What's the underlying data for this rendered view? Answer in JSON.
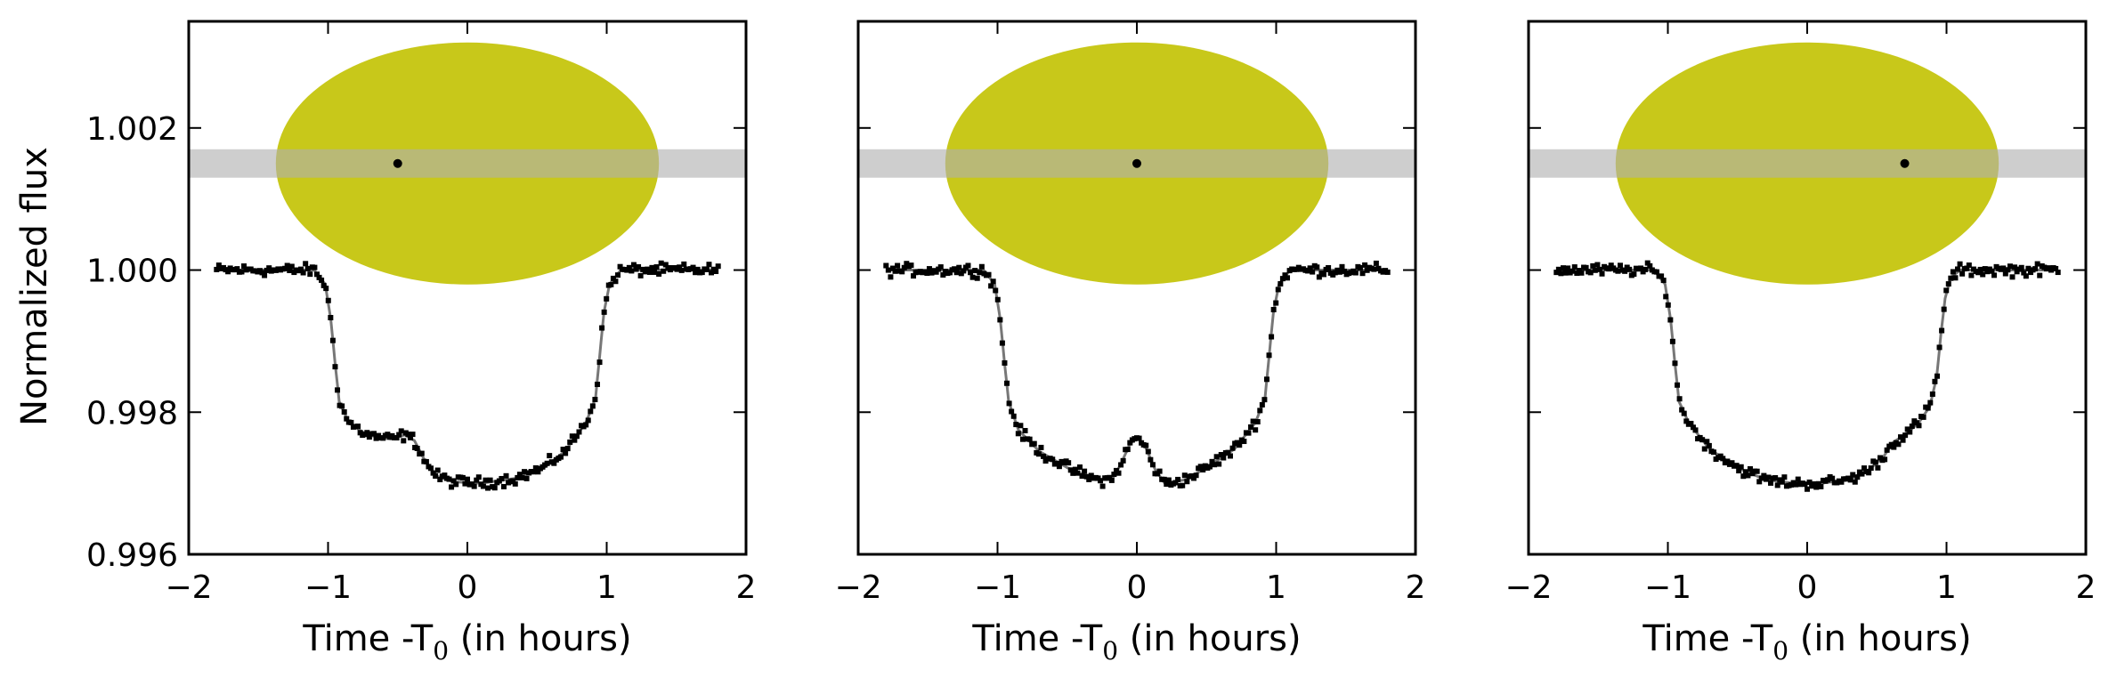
{
  "figure": {
    "ylabel": "Normalized flux",
    "xlabel_main": "Time -T",
    "xlabel_sub": "0",
    "xlabel_tail": " (in hours)"
  },
  "chart_data": [
    {
      "type": "scatter",
      "panel": "left",
      "xlim": [
        -2,
        2
      ],
      "ylim": [
        0.996,
        1.0035
      ],
      "xticks": [
        "−2",
        "−1",
        "0",
        "1",
        "2"
      ],
      "yticks": [
        "0.996",
        "0.998",
        "1.000",
        "1.002"
      ],
      "grid": false,
      "xlabel": "Time -T0 (in hours)",
      "ylabel": "Normalized flux",
      "star": {
        "center_x": 0.0,
        "center_y": 1.0015,
        "color": "#c8c81a"
      },
      "band": {
        "y_from": 1.0013,
        "y_to": 1.0017,
        "color": "#b0b0b0"
      },
      "spot": {
        "x": -0.5,
        "y": 1.0015
      },
      "model": [
        [
          -1.8,
          1.0
        ],
        [
          -1.1,
          1.0
        ],
        [
          -1.02,
          0.9998
        ],
        [
          -0.98,
          0.9993
        ],
        [
          -0.95,
          0.9987
        ],
        [
          -0.92,
          0.99815
        ],
        [
          -0.85,
          0.99785
        ],
        [
          -0.72,
          0.99768
        ],
        [
          -0.55,
          0.99762
        ],
        [
          -0.45,
          0.99768
        ],
        [
          -0.38,
          0.9976
        ],
        [
          -0.3,
          0.9973
        ],
        [
          -0.22,
          0.9971
        ],
        [
          -0.1,
          0.99702
        ],
        [
          0.1,
          0.997
        ],
        [
          0.35,
          0.99707
        ],
        [
          0.55,
          0.99722
        ],
        [
          0.7,
          0.99745
        ],
        [
          0.85,
          0.99785
        ],
        [
          0.92,
          0.9982
        ],
        [
          0.95,
          0.9988
        ],
        [
          0.98,
          0.9994
        ],
        [
          1.02,
          0.9998
        ],
        [
          1.1,
          1.0
        ],
        [
          1.8,
          1.0
        ]
      ]
    },
    {
      "type": "scatter",
      "panel": "middle",
      "xlim": [
        -2,
        2
      ],
      "ylim": [
        0.996,
        1.0035
      ],
      "xticks": [
        "−2",
        "−1",
        "0",
        "1",
        "2"
      ],
      "grid": false,
      "xlabel": "Time -T0 (in hours)",
      "star": {
        "center_x": 0.0,
        "center_y": 1.0015,
        "color": "#c8c81a"
      },
      "band": {
        "y_from": 1.0013,
        "y_to": 1.0017,
        "color": "#b0b0b0"
      },
      "spot": {
        "x": 0.0,
        "y": 1.0015
      },
      "model": [
        [
          -1.8,
          1.0
        ],
        [
          -1.1,
          1.0
        ],
        [
          -1.02,
          0.9998
        ],
        [
          -0.98,
          0.9993
        ],
        [
          -0.95,
          0.9987
        ],
        [
          -0.92,
          0.99815
        ],
        [
          -0.85,
          0.99775
        ],
        [
          -0.7,
          0.99745
        ],
        [
          -0.5,
          0.99722
        ],
        [
          -0.3,
          0.99705
        ],
        [
          -0.18,
          0.99705
        ],
        [
          -0.12,
          0.99725
        ],
        [
          -0.05,
          0.99755
        ],
        [
          0.0,
          0.99765
        ],
        [
          0.06,
          0.99752
        ],
        [
          0.13,
          0.9972
        ],
        [
          0.2,
          0.997
        ],
        [
          0.35,
          0.99705
        ],
        [
          0.5,
          0.99722
        ],
        [
          0.7,
          0.99748
        ],
        [
          0.85,
          0.99785
        ],
        [
          0.92,
          0.9982
        ],
        [
          0.95,
          0.9988
        ],
        [
          0.98,
          0.9994
        ],
        [
          1.02,
          0.9998
        ],
        [
          1.1,
          1.0
        ],
        [
          1.8,
          1.0
        ]
      ]
    },
    {
      "type": "scatter",
      "panel": "right",
      "xlim": [
        -2,
        2
      ],
      "ylim": [
        0.996,
        1.0035
      ],
      "xticks": [
        "−2",
        "−1",
        "0",
        "1",
        "2"
      ],
      "grid": false,
      "xlabel": "Time -T0 (in hours)",
      "star": {
        "center_x": 0.0,
        "center_y": 1.0015,
        "color": "#c8c81a"
      },
      "band": {
        "y_from": 1.0013,
        "y_to": 1.0017,
        "color": "#b0b0b0"
      },
      "spot": {
        "x": 0.7,
        "y": 1.0015
      },
      "model": [
        [
          -1.8,
          1.0
        ],
        [
          -1.1,
          1.0
        ],
        [
          -1.02,
          0.9998
        ],
        [
          -0.98,
          0.9993
        ],
        [
          -0.95,
          0.9987
        ],
        [
          -0.92,
          0.99815
        ],
        [
          -0.85,
          0.99785
        ],
        [
          -0.7,
          0.99748
        ],
        [
          -0.5,
          0.99722
        ],
        [
          -0.3,
          0.99705
        ],
        [
          -0.1,
          0.997
        ],
        [
          0.1,
          0.997
        ],
        [
          0.3,
          0.99705
        ],
        [
          0.45,
          0.9972
        ],
        [
          0.55,
          0.99738
        ],
        [
          0.62,
          0.99758
        ],
        [
          0.7,
          0.99768
        ],
        [
          0.8,
          0.99785
        ],
        [
          0.88,
          0.99808
        ],
        [
          0.93,
          0.9985
        ],
        [
          0.96,
          0.9991
        ],
        [
          0.99,
          0.9996
        ],
        [
          1.03,
          0.9999
        ],
        [
          1.1,
          1.0
        ],
        [
          1.8,
          1.0
        ]
      ]
    }
  ]
}
